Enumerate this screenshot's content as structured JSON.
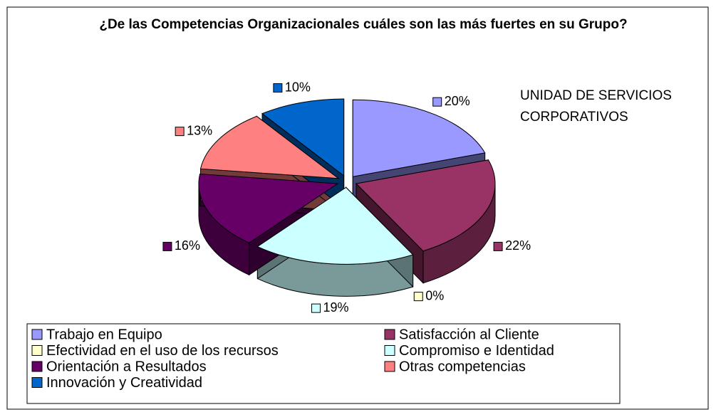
{
  "chart_data": {
    "type": "pie3d",
    "title": "¿De las Competencias Organizacionales cuáles son las más fuertes en su Grupo?",
    "annotation": "UNIDAD DE SERVICIOS CORPORATIVOS",
    "categories": [
      "Trabajo en Equipo",
      "Satisfacción al Cliente",
      "Efectividad en el uso de los recursos",
      "Compromiso e Identidad",
      "Orientación a Resultados",
      "Otras competencias",
      "Innovación y Creatividad"
    ],
    "values": [
      20,
      22,
      0,
      19,
      16,
      13,
      10
    ],
    "value_labels": [
      "20%",
      "22%",
      "0%",
      "19%",
      "16%",
      "13%",
      "10%"
    ],
    "colors": [
      "#9999ff",
      "#993366",
      "#ffffcc",
      "#ccffff",
      "#660066",
      "#ff8080",
      "#0066cc"
    ],
    "legend": "bottom"
  }
}
